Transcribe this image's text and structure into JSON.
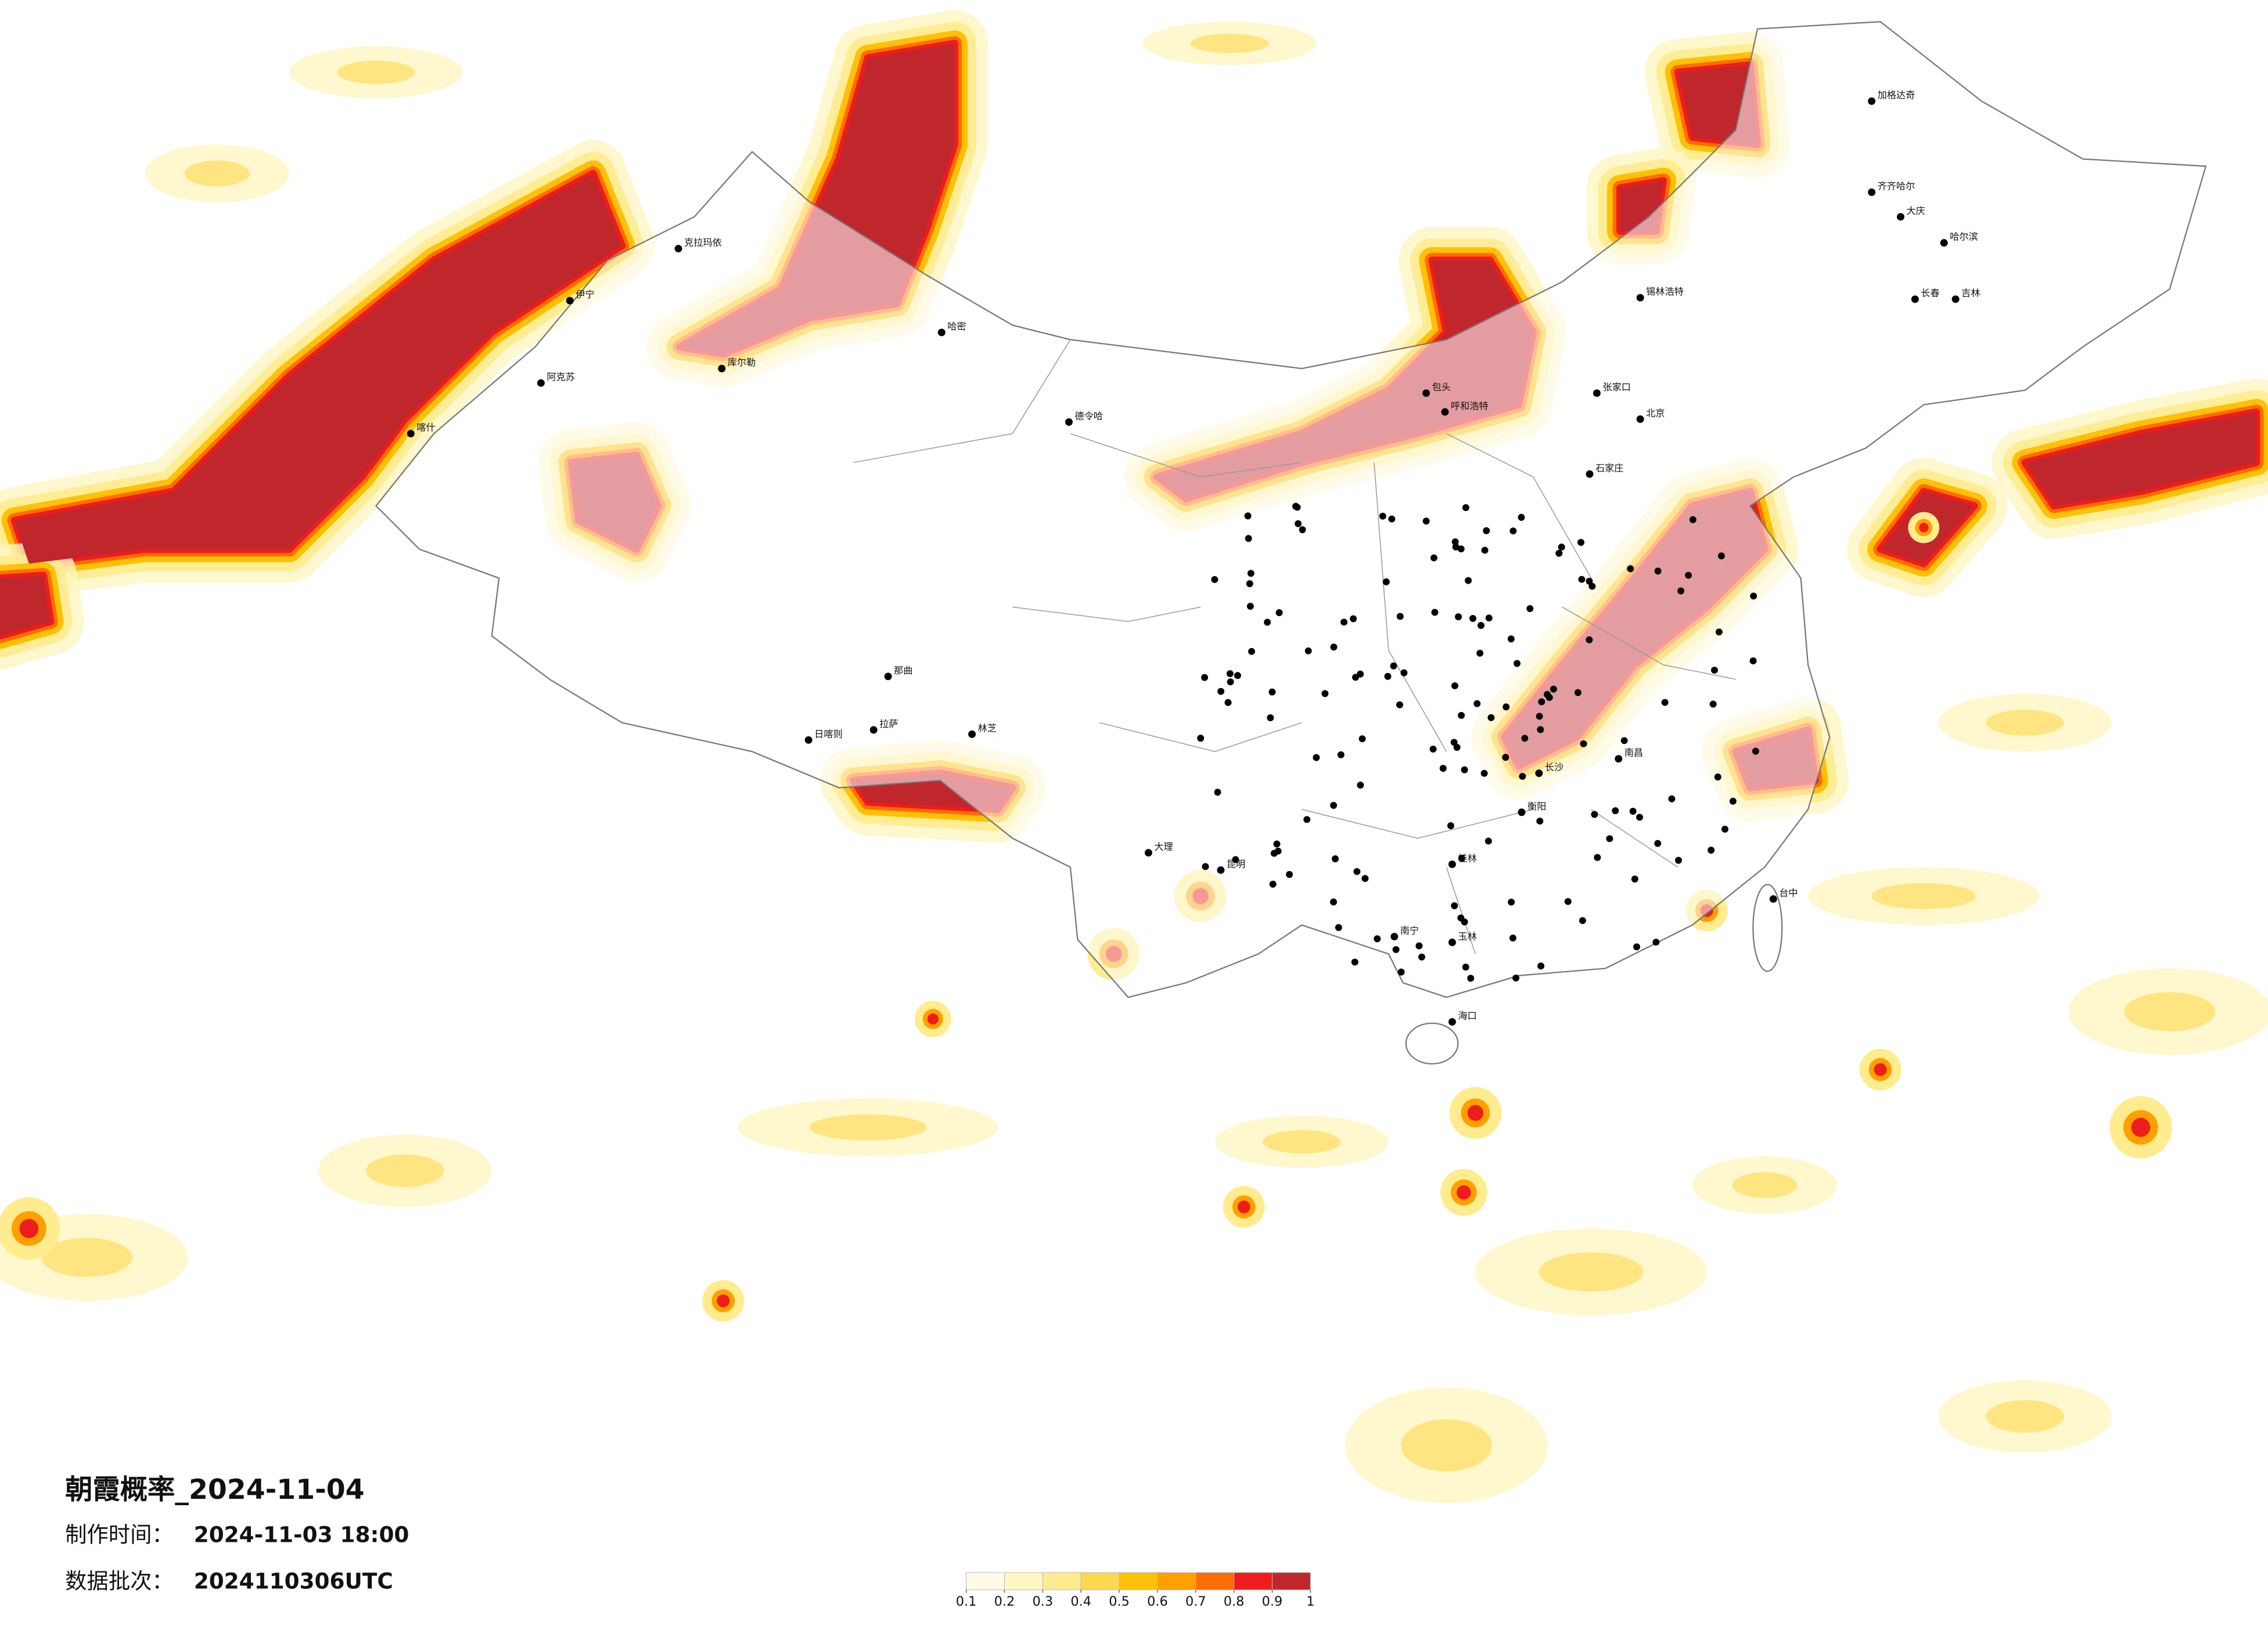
{
  "title": "朝霞概率_2024-11-04",
  "production_time": {
    "label": "制作时间：",
    "value": "2024-11-03 18:00"
  },
  "batch": {
    "label": "数据批次：",
    "value": "2024110306UTC"
  },
  "colorbar": {
    "ticks": [
      0.1,
      0.2,
      0.3,
      0.4,
      0.5,
      0.6,
      0.7,
      0.8,
      0.9,
      1
    ],
    "colors": [
      "#fffbe8",
      "#fff6c2",
      "#ffec8f",
      "#ffd84f",
      "#ffc107",
      "#ffa000",
      "#ff6d00",
      "#ee1c1c",
      "#c0272d"
    ]
  },
  "cities": [
    "克拉玛依",
    "伊宁",
    "库尔勒",
    "哈密",
    "阿克苏",
    "喀什",
    "那曲",
    "拉萨",
    "日喀则",
    "林芝",
    "德令哈",
    "包头",
    "呼和浩特",
    "张家口",
    "北京",
    "石家庄",
    "锡林浩特",
    "加格达奇",
    "齐齐哈尔",
    "大庆",
    "哈尔滨",
    "长春",
    "吉林",
    "大理",
    "昆明",
    "桂林",
    "南宁",
    "玉林",
    "长沙",
    "衡阳",
    "南昌",
    "台中",
    "海口"
  ]
}
